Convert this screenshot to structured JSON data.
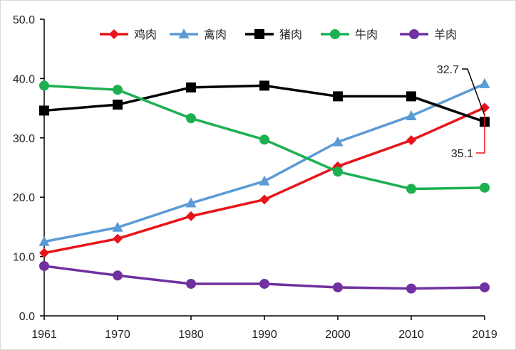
{
  "chart_data": {
    "type": "line",
    "title": "",
    "xlabel": "",
    "ylabel": "",
    "x": [
      "1961",
      "1970",
      "1980",
      "1990",
      "2000",
      "2010",
      "2019"
    ],
    "ylim": [
      0,
      50
    ],
    "yticks": [
      "0.0",
      "10.0",
      "20.0",
      "30.0",
      "40.0",
      "50.0"
    ],
    "grid": false,
    "legend_position": "top",
    "series": [
      {
        "name": "鸡肉",
        "color": "#e8131b",
        "marker": "diamond",
        "values": [
          10.6,
          13.0,
          16.8,
          19.6,
          25.2,
          29.6,
          35.1
        ]
      },
      {
        "name": "禽肉",
        "color": "#5b9bd5",
        "marker": "triangle",
        "values": [
          12.5,
          14.9,
          19.0,
          22.7,
          29.3,
          33.7,
          39.1
        ]
      },
      {
        "name": "猪肉",
        "color": "#000000",
        "marker": "square",
        "values": [
          34.6,
          35.6,
          38.5,
          38.8,
          37.0,
          37.0,
          32.7
        ]
      },
      {
        "name": "牛肉",
        "color": "#1cb050",
        "marker": "circle",
        "values": [
          38.8,
          38.1,
          33.3,
          29.7,
          24.3,
          21.4,
          21.6
        ]
      },
      {
        "name": "羊肉",
        "color": "#7030a0",
        "marker": "circle",
        "values": [
          8.4,
          6.8,
          5.4,
          5.4,
          4.8,
          4.6,
          4.8
        ]
      }
    ],
    "annotations": [
      {
        "text": "32.7",
        "series": "猪肉",
        "color": "#000000"
      },
      {
        "text": "35.1",
        "series": "鸡肉",
        "color": "#e8131b"
      }
    ]
  }
}
